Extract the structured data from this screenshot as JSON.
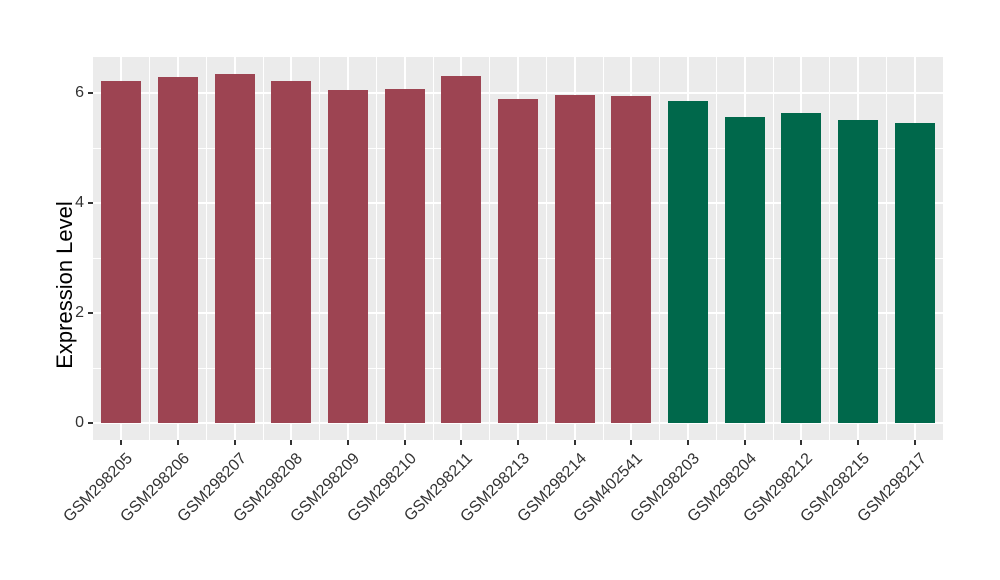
{
  "chart_data": {
    "type": "bar",
    "title": "",
    "xlabel": "",
    "ylabel": "Expression Level",
    "ylim": [
      0,
      6.67
    ],
    "yticks_major": [
      0,
      2,
      4,
      6
    ],
    "yticks_minor": [
      1,
      3,
      5
    ],
    "grid": "white major+minor gridlines on gray panel (ggplot style)",
    "legend": "none",
    "x_label_rotation_deg": 45,
    "categories": [
      "GSM298205",
      "GSM298206",
      "GSM298207",
      "GSM298208",
      "GSM298209",
      "GSM298210",
      "GSM298211",
      "GSM298213",
      "GSM298214",
      "GSM402541",
      "GSM298203",
      "GSM298204",
      "GSM298212",
      "GSM298215",
      "GSM298217"
    ],
    "values": [
      6.22,
      6.29,
      6.35,
      6.22,
      6.05,
      6.07,
      6.31,
      5.9,
      5.96,
      5.95,
      5.85,
      5.56,
      5.64,
      5.51,
      5.46
    ],
    "groups": [
      "group-1",
      "group-1",
      "group-1",
      "group-1",
      "group-1",
      "group-1",
      "group-1",
      "group-1",
      "group-1",
      "group-1",
      "group-2",
      "group-2",
      "group-2",
      "group-2",
      "group-2"
    ],
    "group_colors": {
      "group-1": "#9D4452",
      "group-2": "#00684B"
    },
    "panel_background": "#EBEBEB",
    "gridline_color": "#FFFFFF",
    "tick_color": "#333333"
  }
}
